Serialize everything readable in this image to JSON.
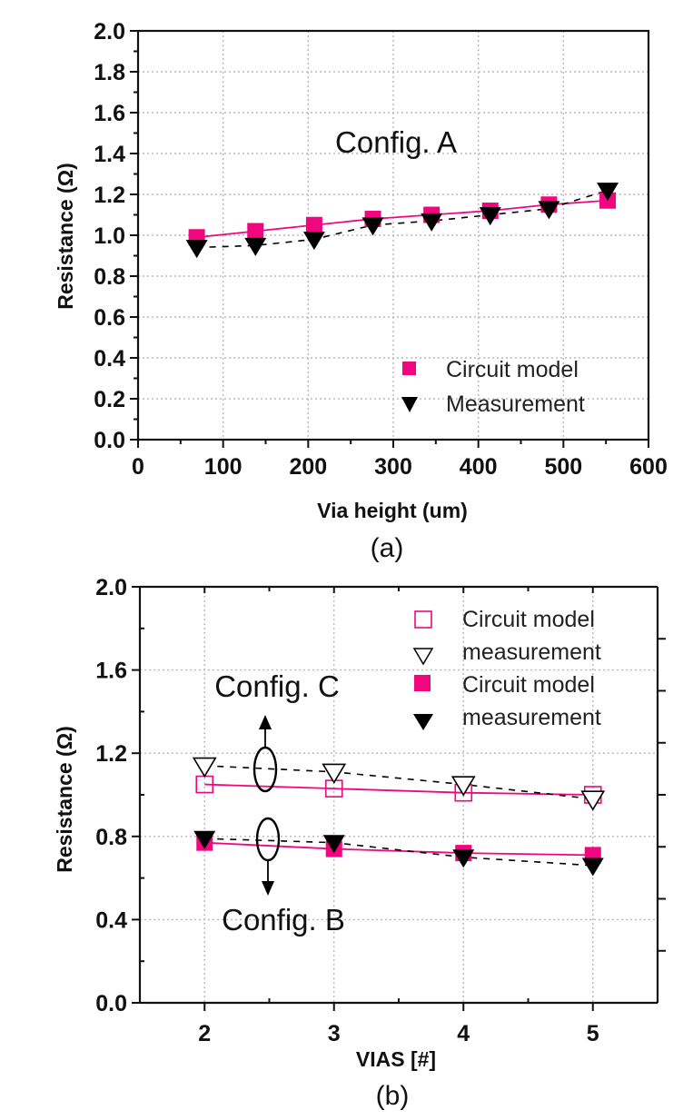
{
  "colors": {
    "model": "#f0067f",
    "measurement": "#000000",
    "grid": "#b8b8b8"
  },
  "chart_data": [
    {
      "panel": "(a)",
      "type": "line",
      "title": "",
      "annotation": "Config. A",
      "xlabel": "Via height (um)",
      "ylabel": "Resistance (Ω)",
      "xlim": [
        0,
        600
      ],
      "ylim": [
        0,
        2.0
      ],
      "xticks": [
        0,
        100,
        200,
        300,
        400,
        500,
        600
      ],
      "xtick_labels": [
        "0",
        "100",
        "200",
        "300",
        "400",
        "500",
        "600"
      ],
      "yticks": [
        0.0,
        0.2,
        0.4,
        0.6,
        0.8,
        1.0,
        1.2,
        1.4,
        1.6,
        1.8,
        2.0
      ],
      "ytick_labels": [
        "0.0",
        "0.2",
        "0.4",
        "0.6",
        "0.8",
        "1.0",
        "1.2",
        "1.4",
        "1.6",
        "1.8",
        "2.0"
      ],
      "grid": true,
      "legend": {
        "placement": "bottom-right",
        "entries": [
          "Circuit model",
          "Measurement"
        ]
      },
      "x": [
        69,
        138,
        207,
        276,
        345,
        414,
        483,
        552
      ],
      "series": [
        {
          "name": "Circuit model",
          "marker": "square-filled",
          "line": "solid",
          "values": [
            0.99,
            1.02,
            1.05,
            1.08,
            1.1,
            1.12,
            1.15,
            1.17
          ]
        },
        {
          "name": "Measurement",
          "marker": "triangle-down-filled",
          "line": "dashed",
          "values": [
            0.94,
            0.95,
            0.98,
            1.05,
            1.07,
            1.1,
            1.13,
            1.22
          ]
        }
      ]
    },
    {
      "panel": "(b)",
      "type": "line",
      "title": "",
      "annotations": [
        "Config. C",
        "Config. B"
      ],
      "xlabel": "VIAS [#]",
      "ylabel": "Resistance (Ω)",
      "xlim": [
        1.5,
        5.5
      ],
      "ylim": [
        0,
        2.0
      ],
      "xticks": [
        2,
        3,
        4,
        5
      ],
      "xtick_labels": [
        "2",
        "3",
        "4",
        "5"
      ],
      "yticks": [
        0.0,
        0.4,
        0.8,
        1.2,
        1.6,
        2.0
      ],
      "ytick_labels": [
        "0.0",
        "0.4",
        "0.8",
        "1.2",
        "1.6",
        "2.0"
      ],
      "grid": true,
      "legend": {
        "placement": "top-right",
        "entries": [
          "Circuit model",
          "measurement",
          "Circuit model",
          "measurement"
        ]
      },
      "x": [
        2,
        3,
        4,
        5
      ],
      "series": [
        {
          "name": "Circuit model",
          "config": "C",
          "marker": "square-open",
          "line": "solid",
          "values": [
            1.05,
            1.03,
            1.01,
            1.0
          ]
        },
        {
          "name": "measurement",
          "config": "C",
          "marker": "triangle-down-open",
          "line": "dashed",
          "values": [
            1.14,
            1.11,
            1.05,
            0.98
          ]
        },
        {
          "name": "Circuit model",
          "config": "B",
          "marker": "square-filled",
          "line": "solid",
          "values": [
            0.77,
            0.74,
            0.72,
            0.71
          ]
        },
        {
          "name": "measurement",
          "config": "B",
          "marker": "triangle-down-filled",
          "line": "dashed",
          "values": [
            0.79,
            0.77,
            0.7,
            0.66
          ]
        }
      ]
    }
  ]
}
